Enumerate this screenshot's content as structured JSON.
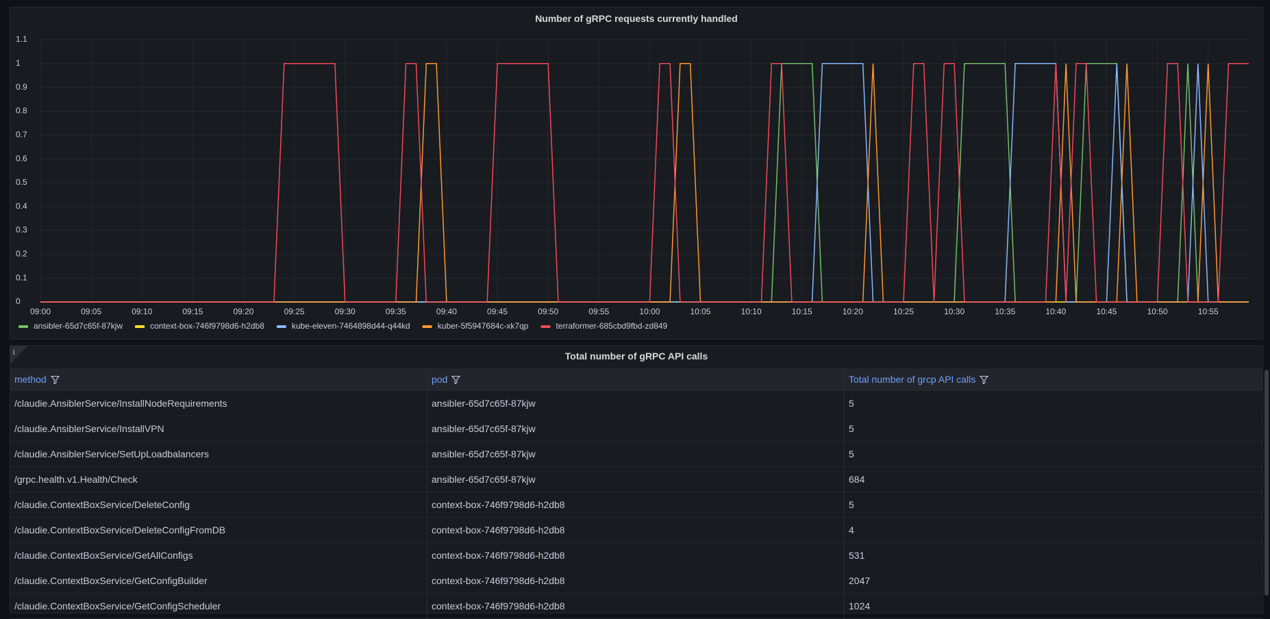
{
  "chart_data": {
    "type": "line",
    "title": "Number of gRPC requests currently handled",
    "xlim": [
      "09:00",
      "10:59"
    ],
    "xticks": [
      "09:00",
      "09:05",
      "09:10",
      "09:15",
      "09:20",
      "09:25",
      "09:30",
      "09:35",
      "09:40",
      "09:45",
      "09:50",
      "09:55",
      "10:00",
      "10:05",
      "10:10",
      "10:15",
      "10:20",
      "10:25",
      "10:30",
      "10:35",
      "10:40",
      "10:45",
      "10:50",
      "10:55"
    ],
    "ylim": [
      0,
      1.1
    ],
    "yticks": [
      0,
      0.1,
      0.2,
      0.3,
      0.4,
      0.5,
      0.6,
      0.7,
      0.8,
      0.9,
      1,
      1.1
    ],
    "grid": true,
    "legend": "bottom",
    "series": [
      {
        "name": "ansibler-65d7c65f-87kjw",
        "color": "#73bf69",
        "x": [
          "09:00",
          "10:12",
          "10:13",
          "10:16",
          "10:17",
          "10:30",
          "10:31",
          "10:35",
          "10:36",
          "10:42",
          "10:43",
          "10:46",
          "10:47",
          "10:52",
          "10:53",
          "10:54",
          "10:59"
        ],
        "values": [
          0,
          0,
          1,
          1,
          0,
          0,
          1,
          1,
          0,
          0,
          1,
          1,
          0,
          0,
          1,
          0,
          0
        ]
      },
      {
        "name": "context-box-746f9798d6-h2db8",
        "color": "#fade2a",
        "x": [
          "09:00",
          "10:59"
        ],
        "values": [
          0,
          0
        ]
      },
      {
        "name": "kube-eleven-7464898d44-q44kd",
        "color": "#8ab8ff",
        "x": [
          "09:00",
          "10:16",
          "10:17",
          "10:21",
          "10:22",
          "10:35",
          "10:36",
          "10:40",
          "10:41",
          "10:45",
          "10:46",
          "10:47",
          "10:53",
          "10:54",
          "10:55",
          "10:59"
        ],
        "values": [
          0,
          0,
          1,
          1,
          0,
          0,
          1,
          1,
          0,
          0,
          1,
          0,
          0,
          1,
          0,
          0
        ]
      },
      {
        "name": "kuber-5f5947684c-xk7qp",
        "color": "#ff9830",
        "x": [
          "09:00",
          "09:37",
          "09:38",
          "09:39",
          "09:40",
          "10:02",
          "10:03",
          "10:04",
          "10:05",
          "10:21",
          "10:22",
          "10:23",
          "10:40",
          "10:41",
          "10:42",
          "10:46",
          "10:47",
          "10:48",
          "10:54",
          "10:55",
          "10:56",
          "10:59"
        ],
        "values": [
          0,
          0,
          1,
          1,
          0,
          0,
          1,
          1,
          0,
          0,
          1,
          0,
          0,
          1,
          0,
          0,
          1,
          0,
          0,
          1,
          0,
          0
        ]
      },
      {
        "name": "terraformer-685cbd9fbd-zd849",
        "color": "#f2495c",
        "x": [
          "09:00",
          "09:23",
          "09:24",
          "09:29",
          "09:30",
          "09:35",
          "09:36",
          "09:37",
          "09:38",
          "09:44",
          "09:45",
          "09:50",
          "09:51",
          "10:00",
          "10:01",
          "10:02",
          "10:03",
          "10:11",
          "10:12",
          "10:13",
          "10:14",
          "10:25",
          "10:26",
          "10:27",
          "10:28",
          "10:29",
          "10:30",
          "10:31",
          "10:39",
          "10:40",
          "10:41",
          "10:42",
          "10:43",
          "10:44",
          "10:50",
          "10:51",
          "10:52",
          "10:53",
          "10:56",
          "10:57",
          "10:59"
        ],
        "values": [
          0,
          0,
          1,
          1,
          0,
          0,
          1,
          1,
          0,
          0,
          1,
          1,
          0,
          0,
          1,
          1,
          0,
          0,
          1,
          1,
          0,
          0,
          1,
          1,
          0,
          1,
          1,
          0,
          0,
          1,
          0,
          1,
          1,
          0,
          0,
          1,
          1,
          0,
          0,
          1,
          1
        ]
      }
    ]
  },
  "table": {
    "title": "Total number of gRPC API calls",
    "info_icon": "i",
    "columns": [
      "method",
      "pod",
      "Total number of grcp API calls"
    ],
    "rows": [
      [
        "/claudie.AnsiblerService/InstallNodeRequirements",
        "ansibler-65d7c65f-87kjw",
        5
      ],
      [
        "/claudie.AnsiblerService/InstallVPN",
        "ansibler-65d7c65f-87kjw",
        5
      ],
      [
        "/claudie.AnsiblerService/SetUpLoadbalancers",
        "ansibler-65d7c65f-87kjw",
        5
      ],
      [
        "/grpc.health.v1.Health/Check",
        "ansibler-65d7c65f-87kjw",
        684
      ],
      [
        "/claudie.ContextBoxService/DeleteConfig",
        "context-box-746f9798d6-h2db8",
        5
      ],
      [
        "/claudie.ContextBoxService/DeleteConfigFromDB",
        "context-box-746f9798d6-h2db8",
        4
      ],
      [
        "/claudie.ContextBoxService/GetAllConfigs",
        "context-box-746f9798d6-h2db8",
        531
      ],
      [
        "/claudie.ContextBoxService/GetConfigBuilder",
        "context-box-746f9798d6-h2db8",
        2047
      ],
      [
        "/claudie.ContextBoxService/GetConfigScheduler",
        "context-box-746f9798d6-h2db8",
        1024
      ]
    ]
  }
}
